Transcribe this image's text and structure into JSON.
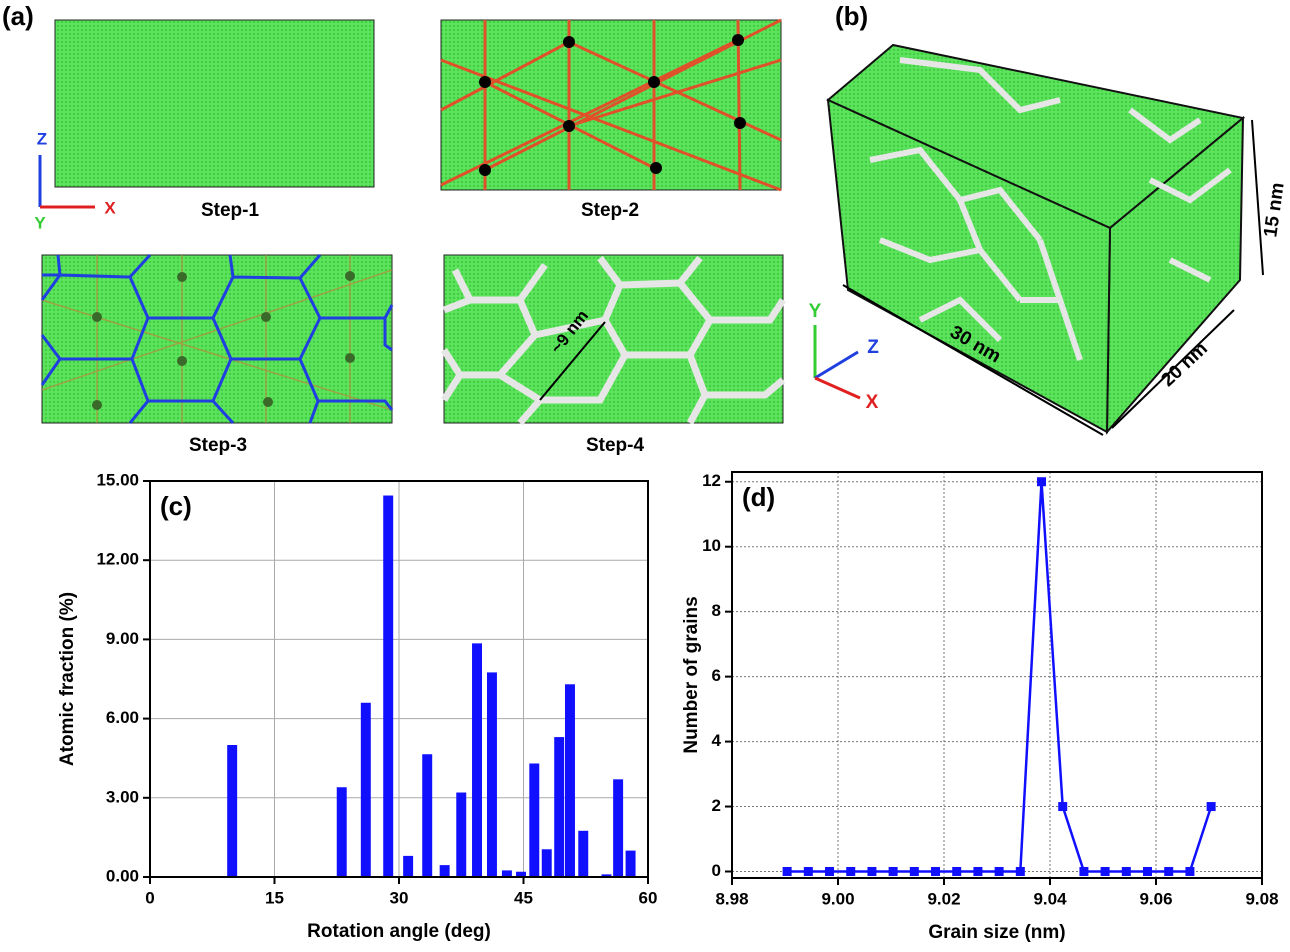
{
  "figure": {
    "panel_a": "(a)",
    "panel_b": "(b)",
    "steps": [
      "Step-1",
      "Step-2",
      "Step-3",
      "Step-4"
    ],
    "axes_a": {
      "z": "Z",
      "y": "Y",
      "x": "X"
    },
    "axes_b": {
      "y": "Y",
      "z": "Z",
      "x": "X"
    },
    "grain_size_note": "~9 nm",
    "dim_x": "30 nm",
    "dim_z": "20 nm",
    "dim_y": "15 nm"
  },
  "chart_data": [
    {
      "type": "bar",
      "panel_label": "(c)",
      "x_label": "Rotation angle (deg)",
      "y_label": "Atomic fraction (%)",
      "color": "#1010ff",
      "x": [
        9.9,
        23.1,
        26.0,
        28.7,
        31.1,
        33.4,
        35.5,
        37.5,
        39.4,
        41.2,
        43.0,
        44.7,
        46.3,
        47.8,
        49.3,
        50.6,
        52.2,
        55.0,
        56.4,
        57.9
      ],
      "values": [
        5.0,
        3.4,
        6.6,
        14.45,
        0.8,
        4.65,
        0.45,
        3.2,
        8.85,
        7.75,
        0.25,
        0.2,
        4.3,
        1.05,
        5.3,
        7.3,
        1.75,
        0.1,
        3.7,
        1.0
      ],
      "xlim": [
        0,
        60
      ],
      "xticks": [
        0,
        15,
        30,
        45,
        60
      ],
      "ylim": [
        0,
        15
      ],
      "yticks": [
        {
          "value": 0,
          "label": "0.00"
        },
        {
          "value": 3,
          "label": "3.00"
        },
        {
          "value": 6,
          "label": "6.00"
        },
        {
          "value": 9,
          "label": "9.00"
        },
        {
          "value": 12,
          "label": "12.00"
        },
        {
          "value": 15,
          "label": "15.00"
        }
      ],
      "grid": true
    },
    {
      "type": "line",
      "panel_label": "(d)",
      "x_label": "Grain size (nm)",
      "y_label": "Number of grains",
      "color": "#1010ff",
      "x": [
        8.9904,
        8.9944,
        8.9984,
        9.0024,
        9.0064,
        9.0104,
        9.0144,
        9.0184,
        9.0224,
        9.0264,
        9.0304,
        9.0344,
        9.0384,
        9.0424,
        9.0464,
        9.0504,
        9.0544,
        9.0584,
        9.0624,
        9.0664,
        9.0704
      ],
      "values": [
        0,
        0,
        0,
        0,
        0,
        0,
        0,
        0,
        0,
        0,
        0,
        0,
        12,
        2,
        0,
        0,
        0,
        0,
        0,
        0,
        2
      ],
      "xlim": [
        8.98,
        9.08
      ],
      "xticks": [
        8.98,
        {
          "value": 9.0,
          "label": "9.00"
        },
        9.02,
        9.04,
        9.06,
        9.08
      ],
      "ylim": [
        -0.2,
        12.3
      ],
      "yticks": [
        0,
        2,
        4,
        6,
        8,
        10,
        12
      ],
      "grid": true
    }
  ]
}
